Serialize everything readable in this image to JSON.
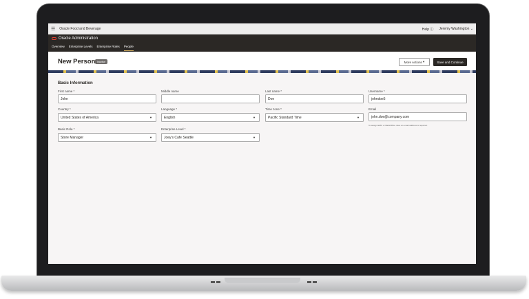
{
  "topbar": {
    "app_name": "Oracle Food and Beverage",
    "help": "Help",
    "help_icon": "question-circle-icon",
    "user": "Jeremy Washington"
  },
  "header": {
    "title": "Oracle Administration",
    "tabs": [
      {
        "label": "Overview"
      },
      {
        "label": "Enterprise Levels"
      },
      {
        "label": "Enterprise Roles"
      },
      {
        "label": "People",
        "active": true
      }
    ]
  },
  "page": {
    "title": "New Person",
    "badge": "Inactive",
    "more_actions": "More Actions",
    "save": "Save and Continue"
  },
  "form": {
    "section": "Basic Information",
    "first_name": {
      "label": "First name *",
      "value": "John"
    },
    "middle_name": {
      "label": "Middle name",
      "value": ""
    },
    "last_name": {
      "label": "Last name *",
      "value": "Doe"
    },
    "username": {
      "label": "Username *",
      "value": "johndoe5"
    },
    "country": {
      "label": "Country *",
      "value": "United States of America"
    },
    "language": {
      "label": "Language *",
      "value": "English"
    },
    "time_zone": {
      "label": "Time zone *",
      "value": "Pacific Standard Time"
    },
    "email": {
      "label": "Email",
      "value": "john.doe@company.com",
      "hint": "To assign EMC or BackOffice roles an email address is required."
    },
    "basic_role": {
      "label": "Basic Role *",
      "value": "Store Manager"
    },
    "enterprise_level": {
      "label": "Enterprise Level *",
      "value": "Joey's Cafe Seattle"
    }
  },
  "colors": {
    "header": "#2b2825",
    "accent": "#c8a45a",
    "oracle_red": "#e0402f"
  }
}
